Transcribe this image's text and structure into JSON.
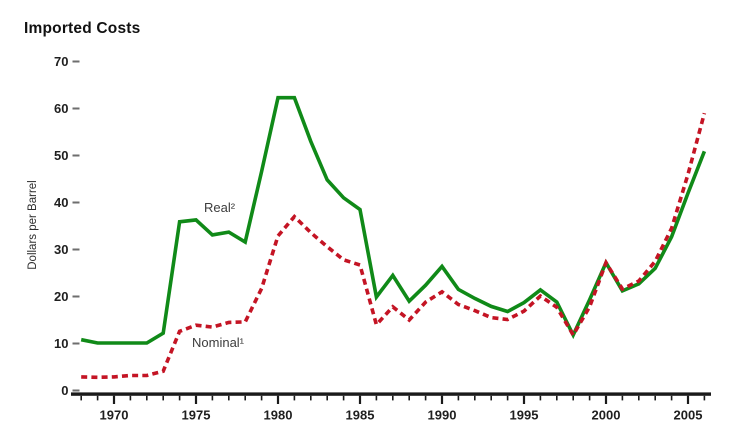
{
  "page": {
    "background": "#ffffff"
  },
  "chart_data": {
    "type": "line",
    "title": "Imported Costs",
    "xlabel": "",
    "ylabel": "Dollars per Barrel",
    "xlim": [
      1967.4,
      2006.4
    ],
    "ylim": [
      0,
      70
    ],
    "grid": false,
    "legend_position": "inline-annotations",
    "x_ticks_major": [
      1970,
      1975,
      1980,
      1985,
      1990,
      1995,
      2000,
      2005
    ],
    "x_ticks_minor_every": 1,
    "y_ticks": [
      0,
      10,
      20,
      30,
      40,
      50,
      60,
      70
    ],
    "x": [
      1968,
      1969,
      1970,
      1971,
      1972,
      1973,
      1974,
      1975,
      1976,
      1977,
      1978,
      1979,
      1980,
      1981,
      1982,
      1983,
      1984,
      1985,
      1986,
      1987,
      1988,
      1989,
      1990,
      1991,
      1992,
      1993,
      1994,
      1995,
      1996,
      1997,
      1998,
      1999,
      2000,
      2001,
      2002,
      2003,
      2004,
      2005,
      2006
    ],
    "series": [
      {
        "name": "Real²",
        "color": "#108a18",
        "line_style": "solid",
        "values": [
          10.8,
          10.1,
          10.1,
          10.1,
          10.1,
          12.2,
          35.9,
          36.3,
          33.1,
          33.7,
          31.6,
          46.6,
          62.3,
          62.3,
          53.0,
          44.8,
          41.0,
          38.5,
          19.9,
          24.5,
          19.0,
          22.4,
          26.4,
          21.5,
          19.6,
          17.9,
          16.8,
          18.7,
          21.4,
          18.8,
          11.8,
          19.3,
          27.2,
          21.2,
          22.7,
          26.0,
          32.7,
          42.0,
          50.9
        ]
      },
      {
        "name": "Nominal¹",
        "color": "#c41424",
        "line_style": "dashed",
        "values": [
          2.9,
          2.8,
          2.9,
          3.2,
          3.2,
          4.1,
          12.6,
          13.9,
          13.5,
          14.5,
          14.6,
          21.7,
          32.9,
          37.0,
          33.6,
          30.6,
          27.8,
          26.7,
          14.0,
          17.8,
          15.0,
          18.8,
          21.0,
          18.3,
          17.0,
          15.5,
          15.1,
          16.9,
          20.1,
          17.7,
          11.8,
          17.8,
          27.2,
          21.6,
          23.3,
          27.5,
          34.5,
          46.0,
          59.0
        ]
      }
    ],
    "axis_color": "#1a1a1a",
    "tick_label_color": "#1f1f1f"
  }
}
